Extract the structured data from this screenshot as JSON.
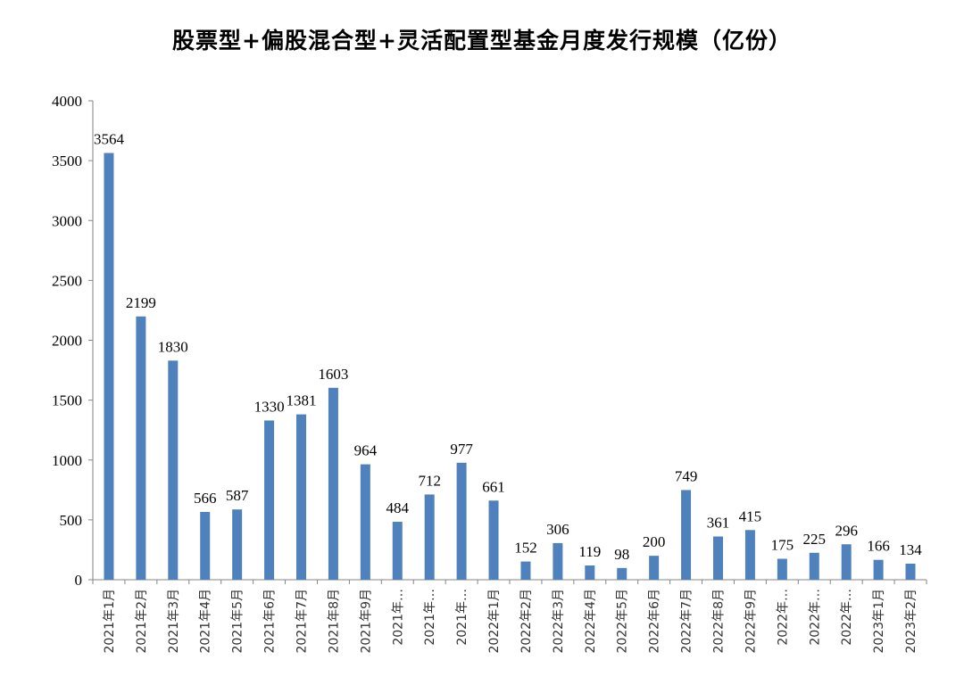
{
  "chart_data": {
    "type": "bar",
    "title": "股票型+偏股混合型+灵活配置型基金月度发行规模（亿份）",
    "xlabel": "",
    "ylabel": "",
    "ylim": [
      0,
      4000
    ],
    "yticks": [
      0,
      500,
      1000,
      1500,
      2000,
      2500,
      3000,
      3500,
      4000
    ],
    "bar_color": "#4F81BD",
    "grid": false,
    "categories": [
      "2021年1月",
      "2021年2月",
      "2021年3月",
      "2021年4月",
      "2021年5月",
      "2021年6月",
      "2021年7月",
      "2021年8月",
      "2021年9月",
      "2021年…",
      "2021年…",
      "2021年…",
      "2022年1月",
      "2022年2月",
      "2022年3月",
      "2022年4月",
      "2022年5月",
      "2022年6月",
      "2022年7月",
      "2022年8月",
      "2022年9月",
      "2022年…",
      "2022年…",
      "2022年…",
      "2023年1月",
      "2023年2月"
    ],
    "values": [
      3564,
      2199,
      1830,
      566,
      587,
      1330,
      1381,
      1603,
      964,
      484,
      712,
      977,
      661,
      152,
      306,
      119,
      98,
      200,
      749,
      361,
      415,
      175,
      225,
      296,
      166,
      134
    ]
  }
}
